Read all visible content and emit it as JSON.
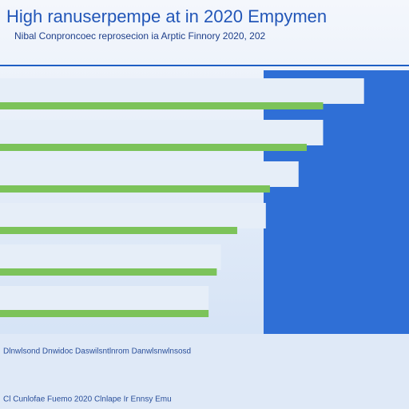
{
  "chart_data": {
    "type": "hbar",
    "title": "High ranuserpempe at in 2020 Empymen",
    "subtitle": "Nibal Conproncoec reprosecion ia Arptic Finnory 2020, 202",
    "categories": [
      null,
      null,
      null,
      null,
      null,
      null
    ],
    "xlim": [
      0,
      100
    ],
    "series": [
      {
        "color": "#e6eef8",
        "values": [
          89,
          79,
          73,
          65,
          54,
          51
        ]
      },
      {
        "color": "#7cc35a",
        "values": [
          79,
          75,
          66,
          58,
          53,
          51
        ]
      }
    ],
    "footer": [
      "Dlnwlsond Dnwidoc Daswilsntlnrom Danwlsnwlnsosd",
      "Cl Cunlofae Fuemo 2020 Clnlape Ir Ennsy Emu"
    ]
  }
}
